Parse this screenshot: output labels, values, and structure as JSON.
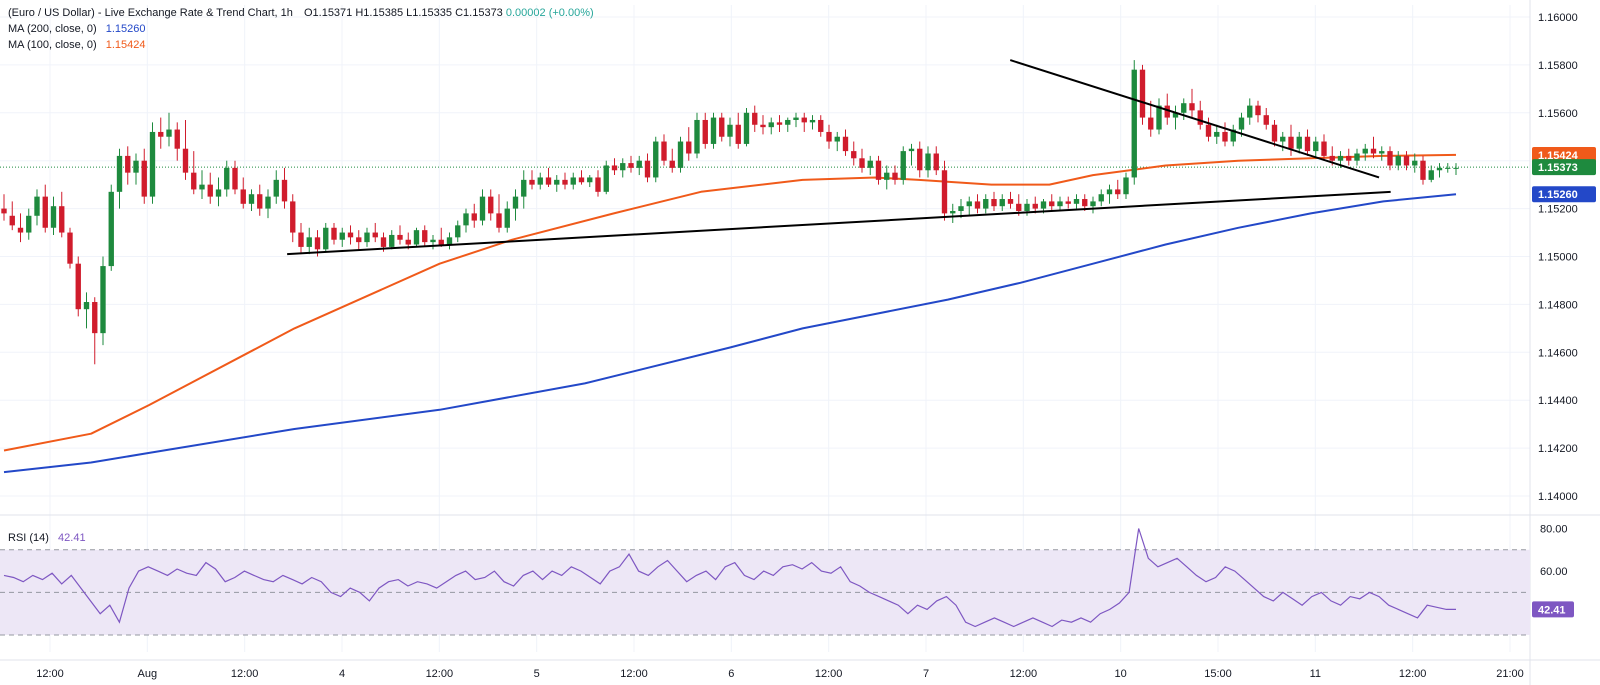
{
  "legend": {
    "title": "(Euro / US Dollar) - Live Exchange Rate & Trend Chart, 1h",
    "open": "O1.15371",
    "high": "H1.15385",
    "low": "L1.15335",
    "close": "C1.15373",
    "change": "0.00002 (+0.00%)",
    "ma200_label": "MA (200, close, 0)",
    "ma200_value": "1.15260",
    "ma100_label": "MA (100, close, 0)",
    "ma100_value": "1.15424"
  },
  "rsi_legend": {
    "label": "RSI (14)",
    "value": "42.41"
  },
  "colors": {
    "up": "#26a69a",
    "up_body": "#1e8a3e",
    "down": "#ef5350",
    "down_body": "#d01c2c",
    "ma100": "#f05a1a",
    "ma200": "#2348c8",
    "trendline": "#000000",
    "rsi_line": "#7e57c2",
    "rsi_band": "#ede7f6",
    "last_price": "#1e8a3e"
  },
  "price_axis": {
    "ticks": [
      "1.16000",
      "1.15800",
      "1.15600",
      "1.15400",
      "1.15200",
      "1.15000",
      "1.14800",
      "1.14600",
      "1.14400",
      "1.14200",
      "1.14000"
    ],
    "badges": [
      {
        "text": "1.15424",
        "kind": "ma100"
      },
      {
        "text": "1.15373",
        "kind": "last"
      },
      {
        "text": "1.15260",
        "kind": "ma200"
      }
    ]
  },
  "rsi_axis": {
    "ticks": [
      "80.00",
      "60.00"
    ],
    "badge": "42.41"
  },
  "time_axis": {
    "labels": [
      "12:00",
      "Aug",
      "12:00",
      "4",
      "12:00",
      "5",
      "12:00",
      "6",
      "12:00",
      "7",
      "12:00",
      "10",
      "15:00",
      "11",
      "12:00",
      "21:00"
    ]
  },
  "chart_data": {
    "type": "candlestick",
    "title": "(Euro / US Dollar) - Live Exchange Rate & Trend Chart, 1h",
    "ylim": [
      1.1395,
      1.1605
    ],
    "rsi_ylim": [
      22,
      84
    ],
    "rsi_levels": [
      70,
      50,
      30
    ],
    "time_labels": [
      "12:00",
      "Aug",
      "12:00",
      "4",
      "12:00",
      "5",
      "12:00",
      "6",
      "12:00",
      "7",
      "12:00",
      "10",
      "15:00",
      "11",
      "12:00",
      "21:00"
    ],
    "candles": [
      [
        1.152,
        1.1526,
        1.1515,
        1.1518
      ],
      [
        1.1517,
        1.1523,
        1.1511,
        1.1513
      ],
      [
        1.1512,
        1.1518,
        1.1506,
        1.151
      ],
      [
        1.151,
        1.152,
        1.1507,
        1.1517
      ],
      [
        1.1517,
        1.1528,
        1.1513,
        1.1525
      ],
      [
        1.1525,
        1.153,
        1.151,
        1.1512
      ],
      [
        1.1512,
        1.1525,
        1.1509,
        1.1521
      ],
      [
        1.1521,
        1.1527,
        1.1508,
        1.151
      ],
      [
        1.151,
        1.1512,
        1.1495,
        1.1497
      ],
      [
        1.1497,
        1.15,
        1.1475,
        1.1478
      ],
      [
        1.1478,
        1.1485,
        1.147,
        1.1481
      ],
      [
        1.1481,
        1.1483,
        1.1455,
        1.1468
      ],
      [
        1.1468,
        1.15,
        1.1463,
        1.1496
      ],
      [
        1.1496,
        1.153,
        1.1494,
        1.1527
      ],
      [
        1.1527,
        1.1545,
        1.152,
        1.1542
      ],
      [
        1.1542,
        1.1546,
        1.153,
        1.1535
      ],
      [
        1.1535,
        1.1543,
        1.153,
        1.154
      ],
      [
        1.154,
        1.1545,
        1.1522,
        1.1525
      ],
      [
        1.1525,
        1.1556,
        1.1522,
        1.1552
      ],
      [
        1.1552,
        1.1558,
        1.1545,
        1.155
      ],
      [
        1.155,
        1.156,
        1.1546,
        1.1553
      ],
      [
        1.1553,
        1.1556,
        1.154,
        1.1545
      ],
      [
        1.1545,
        1.1557,
        1.1532,
        1.1535
      ],
      [
        1.1535,
        1.1544,
        1.1526,
        1.1528
      ],
      [
        1.1528,
        1.1536,
        1.1524,
        1.153
      ],
      [
        1.153,
        1.1535,
        1.1522,
        1.1525
      ],
      [
        1.1525,
        1.1533,
        1.1521,
        1.1528
      ],
      [
        1.1528,
        1.154,
        1.1525,
        1.1537
      ],
      [
        1.1537,
        1.154,
        1.1526,
        1.1528
      ],
      [
        1.1528,
        1.1533,
        1.152,
        1.1522
      ],
      [
        1.1522,
        1.1528,
        1.1519,
        1.1526
      ],
      [
        1.1526,
        1.153,
        1.1517,
        1.152
      ],
      [
        1.152,
        1.1528,
        1.1516,
        1.1525
      ],
      [
        1.1525,
        1.1536,
        1.1522,
        1.1532
      ],
      [
        1.1532,
        1.1537,
        1.152,
        1.1523
      ],
      [
        1.1523,
        1.1526,
        1.1506,
        1.151
      ],
      [
        1.151,
        1.1514,
        1.1501,
        1.1504
      ],
      [
        1.1504,
        1.1512,
        1.1501,
        1.1508
      ],
      [
        1.1508,
        1.1511,
        1.15,
        1.1503
      ],
      [
        1.1503,
        1.1514,
        1.1502,
        1.1512
      ],
      [
        1.1512,
        1.1514,
        1.1505,
        1.1507
      ],
      [
        1.1507,
        1.1512,
        1.1504,
        1.151
      ],
      [
        1.151,
        1.1513,
        1.1505,
        1.1508
      ],
      [
        1.1508,
        1.1511,
        1.1503,
        1.1506
      ],
      [
        1.1506,
        1.1512,
        1.1504,
        1.151
      ],
      [
        1.151,
        1.1514,
        1.1506,
        1.1508
      ],
      [
        1.1508,
        1.151,
        1.1502,
        1.1504
      ],
      [
        1.1504,
        1.1511,
        1.1503,
        1.1509
      ],
      [
        1.1509,
        1.1513,
        1.1505,
        1.1507
      ],
      [
        1.1507,
        1.151,
        1.1503,
        1.1505
      ],
      [
        1.1505,
        1.1512,
        1.1504,
        1.1511
      ],
      [
        1.1511,
        1.1513,
        1.1504,
        1.1506
      ],
      [
        1.1506,
        1.1509,
        1.1503,
        1.1507
      ],
      [
        1.1507,
        1.1512,
        1.1504,
        1.1505
      ],
      [
        1.1505,
        1.151,
        1.1503,
        1.1508
      ],
      [
        1.1508,
        1.1515,
        1.1506,
        1.1513
      ],
      [
        1.1513,
        1.152,
        1.151,
        1.1518
      ],
      [
        1.1518,
        1.1522,
        1.1512,
        1.1515
      ],
      [
        1.1515,
        1.1528,
        1.1513,
        1.1525
      ],
      [
        1.1525,
        1.1528,
        1.1515,
        1.1518
      ],
      [
        1.1518,
        1.1526,
        1.151,
        1.1512
      ],
      [
        1.1512,
        1.1523,
        1.151,
        1.152
      ],
      [
        1.152,
        1.1528,
        1.1515,
        1.1525
      ],
      [
        1.1525,
        1.1536,
        1.152,
        1.1532
      ],
      [
        1.1532,
        1.1536,
        1.1528,
        1.153
      ],
      [
        1.153,
        1.1535,
        1.1528,
        1.1533
      ],
      [
        1.1533,
        1.1537,
        1.1529,
        1.153
      ],
      [
        1.153,
        1.1534,
        1.1527,
        1.1532
      ],
      [
        1.1532,
        1.1535,
        1.1528,
        1.153
      ],
      [
        1.153,
        1.1535,
        1.1528,
        1.1533
      ],
      [
        1.1533,
        1.1536,
        1.153,
        1.1531
      ],
      [
        1.1531,
        1.1534,
        1.1529,
        1.1533
      ],
      [
        1.1533,
        1.1536,
        1.1525,
        1.1527
      ],
      [
        1.1527,
        1.154,
        1.1526,
        1.1538
      ],
      [
        1.1538,
        1.1541,
        1.1534,
        1.1536
      ],
      [
        1.1536,
        1.1541,
        1.1533,
        1.1539
      ],
      [
        1.1539,
        1.1542,
        1.1535,
        1.1537
      ],
      [
        1.1537,
        1.1542,
        1.1534,
        1.154
      ],
      [
        1.154,
        1.1543,
        1.1531,
        1.1533
      ],
      [
        1.1533,
        1.155,
        1.1531,
        1.1548
      ],
      [
        1.1548,
        1.1551,
        1.1538,
        1.154
      ],
      [
        1.154,
        1.1545,
        1.1535,
        1.1537
      ],
      [
        1.1537,
        1.155,
        1.1535,
        1.1548
      ],
      [
        1.1548,
        1.1554,
        1.154,
        1.1543
      ],
      [
        1.1543,
        1.156,
        1.1541,
        1.1557
      ],
      [
        1.1557,
        1.156,
        1.1545,
        1.1547
      ],
      [
        1.1547,
        1.156,
        1.1545,
        1.1558
      ],
      [
        1.1558,
        1.156,
        1.1548,
        1.155
      ],
      [
        1.155,
        1.1558,
        1.1546,
        1.1555
      ],
      [
        1.1555,
        1.156,
        1.1545,
        1.1547
      ],
      [
        1.1547,
        1.1562,
        1.1546,
        1.156
      ],
      [
        1.156,
        1.1563,
        1.1552,
        1.1555
      ],
      [
        1.1555,
        1.1559,
        1.1551,
        1.1554
      ],
      [
        1.1554,
        1.1558,
        1.1551,
        1.1556
      ],
      [
        1.1556,
        1.1559,
        1.1552,
        1.1555
      ],
      [
        1.1555,
        1.1558,
        1.1552,
        1.1557
      ],
      [
        1.1557,
        1.156,
        1.1554,
        1.1558
      ],
      [
        1.1558,
        1.156,
        1.1552,
        1.1556
      ],
      [
        1.1556,
        1.1559,
        1.1553,
        1.1557
      ],
      [
        1.1557,
        1.1559,
        1.155,
        1.1552
      ],
      [
        1.1552,
        1.1555,
        1.1545,
        1.1548
      ],
      [
        1.1548,
        1.1552,
        1.1544,
        1.155
      ],
      [
        1.155,
        1.1553,
        1.1542,
        1.1544
      ],
      [
        1.1544,
        1.1548,
        1.1538,
        1.1541
      ],
      [
        1.1541,
        1.1545,
        1.1535,
        1.1537
      ],
      [
        1.1537,
        1.1542,
        1.1534,
        1.154
      ],
      [
        1.154,
        1.1542,
        1.153,
        1.1532
      ],
      [
        1.1532,
        1.1538,
        1.1528,
        1.1535
      ],
      [
        1.1535,
        1.1538,
        1.153,
        1.1532
      ],
      [
        1.1532,
        1.1546,
        1.153,
        1.1544
      ],
      [
        1.1544,
        1.1547,
        1.1538,
        1.1545
      ],
      [
        1.1545,
        1.1548,
        1.1533,
        1.1536
      ],
      [
        1.1536,
        1.1546,
        1.1533,
        1.1543
      ],
      [
        1.1543,
        1.1546,
        1.1534,
        1.1536
      ],
      [
        1.1536,
        1.154,
        1.1515,
        1.1518
      ],
      [
        1.1518,
        1.1522,
        1.1514,
        1.1519
      ],
      [
        1.1519,
        1.1524,
        1.1516,
        1.1521
      ],
      [
        1.1521,
        1.1525,
        1.1517,
        1.1523
      ],
      [
        1.1523,
        1.1526,
        1.1518,
        1.152
      ],
      [
        1.152,
        1.1526,
        1.1518,
        1.1524
      ],
      [
        1.1524,
        1.1527,
        1.1519,
        1.1521
      ],
      [
        1.1521,
        1.1526,
        1.1519,
        1.1524
      ],
      [
        1.1524,
        1.1527,
        1.152,
        1.1522
      ],
      [
        1.1522,
        1.1526,
        1.1517,
        1.1519
      ],
      [
        1.1519,
        1.1524,
        1.1517,
        1.1522
      ],
      [
        1.1522,
        1.1525,
        1.1518,
        1.152
      ],
      [
        1.152,
        1.1524,
        1.1518,
        1.1523
      ],
      [
        1.1523,
        1.1526,
        1.1519,
        1.1521
      ],
      [
        1.1521,
        1.1525,
        1.1519,
        1.1523
      ],
      [
        1.1523,
        1.1525,
        1.152,
        1.1522
      ],
      [
        1.1522,
        1.1526,
        1.152,
        1.1524
      ],
      [
        1.1524,
        1.1526,
        1.1519,
        1.1521
      ],
      [
        1.1521,
        1.1525,
        1.1518,
        1.1523
      ],
      [
        1.1523,
        1.1528,
        1.1521,
        1.1526
      ],
      [
        1.1526,
        1.153,
        1.1522,
        1.1528
      ],
      [
        1.1528,
        1.1532,
        1.1524,
        1.1526
      ],
      [
        1.1526,
        1.1535,
        1.1524,
        1.1533
      ],
      [
        1.1533,
        1.1582,
        1.153,
        1.1578
      ],
      [
        1.1578,
        1.158,
        1.1555,
        1.1558
      ],
      [
        1.1558,
        1.1565,
        1.155,
        1.1553
      ],
      [
        1.1553,
        1.1566,
        1.1551,
        1.1563
      ],
      [
        1.1563,
        1.1568,
        1.1555,
        1.1558
      ],
      [
        1.1558,
        1.1563,
        1.1553,
        1.156
      ],
      [
        1.156,
        1.1566,
        1.1557,
        1.1564
      ],
      [
        1.1564,
        1.157,
        1.1558,
        1.1561
      ],
      [
        1.1561,
        1.1565,
        1.1553,
        1.1555
      ],
      [
        1.1555,
        1.1558,
        1.1548,
        1.155
      ],
      [
        1.155,
        1.1555,
        1.1547,
        1.1552
      ],
      [
        1.1552,
        1.1556,
        1.1546,
        1.1548
      ],
      [
        1.1548,
        1.1555,
        1.1546,
        1.1553
      ],
      [
        1.1553,
        1.156,
        1.155,
        1.1558
      ],
      [
        1.1558,
        1.1566,
        1.1555,
        1.1563
      ],
      [
        1.1563,
        1.1565,
        1.1556,
        1.1559
      ],
      [
        1.1559,
        1.1562,
        1.1553,
        1.1555
      ],
      [
        1.1555,
        1.1557,
        1.1546,
        1.1548
      ],
      [
        1.1548,
        1.1552,
        1.1544,
        1.155
      ],
      [
        1.155,
        1.1555,
        1.1542,
        1.1545
      ],
      [
        1.1545,
        1.1552,
        1.1543,
        1.155
      ],
      [
        1.155,
        1.1553,
        1.1542,
        1.1544
      ],
      [
        1.1544,
        1.155,
        1.1541,
        1.1548
      ],
      [
        1.1548,
        1.1551,
        1.154,
        1.1542
      ],
      [
        1.1542,
        1.1546,
        1.1538,
        1.154
      ],
      [
        1.154,
        1.1544,
        1.1537,
        1.1542
      ],
      [
        1.1542,
        1.1545,
        1.1538,
        1.154
      ],
      [
        1.154,
        1.1545,
        1.1538,
        1.1543
      ],
      [
        1.1543,
        1.1547,
        1.154,
        1.1545
      ],
      [
        1.1545,
        1.155,
        1.1541,
        1.1543
      ],
      [
        1.1543,
        1.1546,
        1.154,
        1.1544
      ],
      [
        1.1544,
        1.1546,
        1.1536,
        1.1538
      ],
      [
        1.1538,
        1.1544,
        1.1536,
        1.1542
      ],
      [
        1.1542,
        1.1544,
        1.1536,
        1.1538
      ],
      [
        1.1538,
        1.1543,
        1.1535,
        1.154
      ],
      [
        1.154,
        1.1542,
        1.153,
        1.1532
      ],
      [
        1.1532,
        1.1538,
        1.1531,
        1.1536
      ],
      [
        1.1536,
        1.1539,
        1.1533,
        1.1537
      ],
      [
        1.1537,
        1.1539,
        1.1535,
        1.1537
      ],
      [
        1.1537,
        1.1539,
        1.1534,
        1.1537
      ]
    ],
    "ma100": {
      "name": "MA (100, close, 0)",
      "x_frac": [
        0,
        0.06,
        0.1,
        0.2,
        0.3,
        0.35,
        0.42,
        0.48,
        0.55,
        0.6,
        0.63,
        0.68,
        0.72,
        0.75,
        0.8,
        0.85,
        0.9,
        0.95,
        1.0
      ],
      "values": [
        1.1419,
        1.1426,
        1.1438,
        1.147,
        1.1497,
        1.1507,
        1.1518,
        1.1527,
        1.1532,
        1.1533,
        1.1532,
        1.153,
        1.153,
        1.1534,
        1.1538,
        1.154,
        1.1541,
        1.1542,
        1.15424
      ]
    },
    "ma200": {
      "name": "MA (200, close, 0)",
      "x_frac": [
        0,
        0.06,
        0.1,
        0.2,
        0.3,
        0.4,
        0.5,
        0.55,
        0.6,
        0.65,
        0.7,
        0.75,
        0.8,
        0.85,
        0.9,
        0.95,
        1.0
      ],
      "values": [
        1.141,
        1.1414,
        1.1418,
        1.1428,
        1.1436,
        1.1447,
        1.1462,
        1.147,
        1.1476,
        1.1482,
        1.1489,
        1.1497,
        1.1505,
        1.1512,
        1.1518,
        1.1523,
        1.1526
      ]
    },
    "trendlines": [
      {
        "from": [
          0.195,
          1.1501
        ],
        "to": [
          0.955,
          1.1527
        ]
      },
      {
        "from": [
          0.693,
          1.1582
        ],
        "to": [
          0.947,
          1.1533
        ]
      }
    ],
    "last_price": 1.15373,
    "rsi": {
      "name": "RSI (14)",
      "values": [
        58,
        57,
        55,
        58,
        56,
        59,
        54,
        58,
        52,
        46,
        40,
        44,
        36,
        52,
        60,
        62,
        60,
        58,
        61,
        59,
        58,
        64,
        61,
        55,
        57,
        60,
        58,
        56,
        55,
        58,
        56,
        54,
        57,
        55,
        50,
        48,
        52,
        50,
        46,
        52,
        55,
        56,
        53,
        55,
        54,
        52,
        55,
        58,
        60,
        56,
        57,
        60,
        55,
        53,
        58,
        60,
        56,
        60,
        58,
        62,
        60,
        57,
        54,
        60,
        62,
        68,
        60,
        58,
        62,
        65,
        60,
        55,
        58,
        60,
        56,
        62,
        64,
        58,
        56,
        60,
        58,
        62,
        63,
        61,
        64,
        60,
        59,
        62,
        55,
        53,
        50,
        48,
        46,
        44,
        40,
        44,
        42,
        46,
        48,
        44,
        36,
        34,
        36,
        38,
        36,
        34,
        36,
        38,
        36,
        34,
        37,
        36,
        38,
        36,
        40,
        42,
        45,
        50,
        80,
        66,
        62,
        64,
        66,
        62,
        58,
        55,
        57,
        62,
        60,
        56,
        52,
        48,
        46,
        50,
        47,
        44,
        48,
        50,
        46,
        44,
        48,
        47,
        50,
        48,
        44,
        42,
        40,
        38,
        44,
        43,
        42,
        42
      ]
    }
  }
}
